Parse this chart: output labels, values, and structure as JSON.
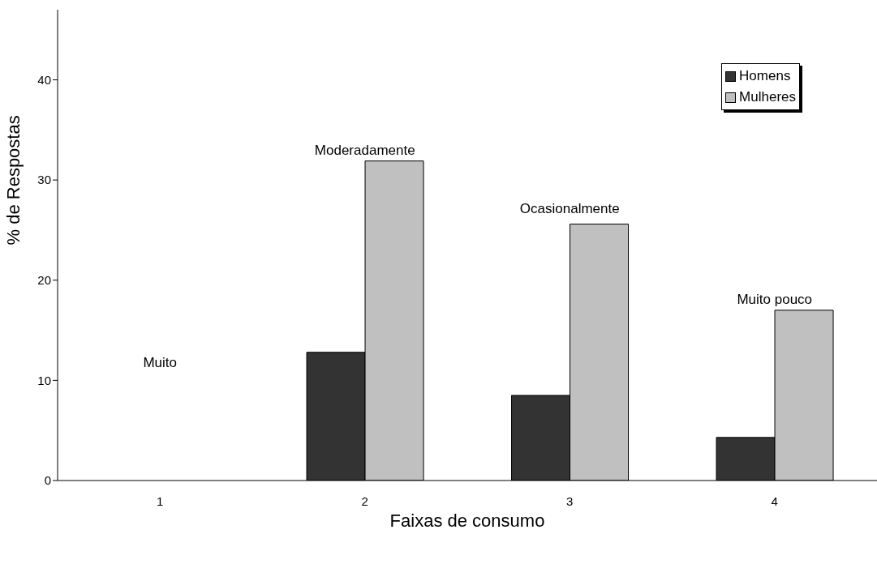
{
  "chart_data": {
    "type": "bar",
    "xlabel": "Faixas de consumo",
    "ylabel": "%  de Respostas",
    "categories": [
      "1",
      "2",
      "3",
      "4"
    ],
    "series": [
      {
        "name": "Homens",
        "color": "#333333",
        "values": [
          0,
          12.8,
          8.5,
          4.3
        ]
      },
      {
        "name": "Mulheres",
        "color": "#c0c0c0",
        "values": [
          0,
          31.9,
          25.6,
          17.0
        ]
      }
    ],
    "ylim": [
      0,
      47
    ],
    "yticks": [
      0,
      10,
      20,
      30,
      40
    ],
    "grid": false,
    "legend": "top right",
    "annotations": [
      "Muito",
      "Moderadamente",
      "Ocasionalmente",
      "Muito pouco"
    ]
  }
}
